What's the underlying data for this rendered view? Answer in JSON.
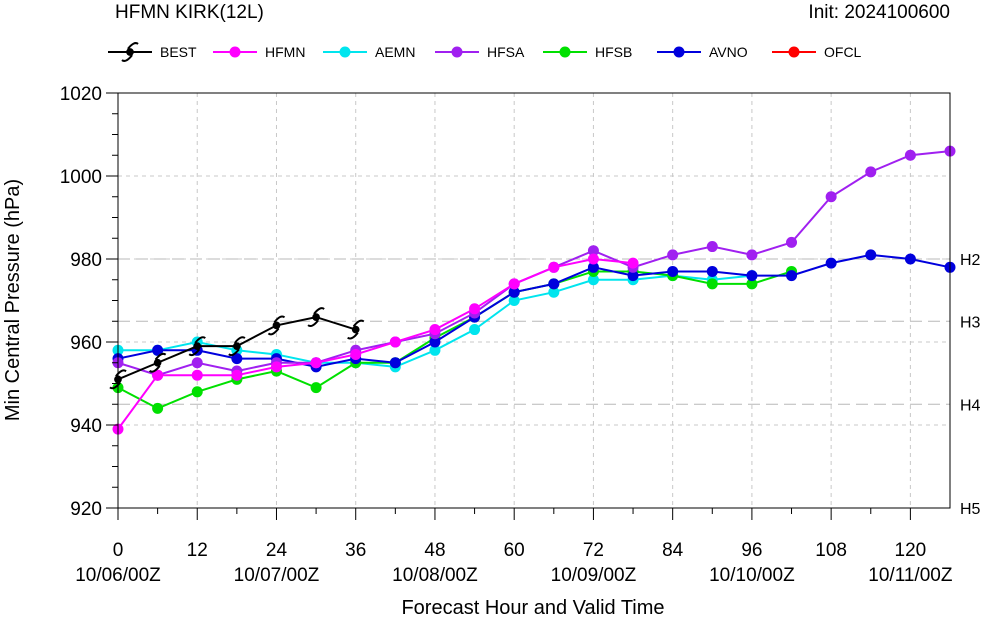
{
  "header": {
    "title": "HFMN KIRK(12L)",
    "init": "Init: 2024100600"
  },
  "chart_data": {
    "type": "line",
    "xlabel": "Forecast Hour and Valid Time",
    "ylabel": "Min Central Pressure (hPa)",
    "xlim": [
      0,
      126
    ],
    "ylim": [
      920,
      1020
    ],
    "xticks": [
      {
        "value": 0,
        "label": "0",
        "date": "10/06/00Z"
      },
      {
        "value": 12,
        "label": "12",
        "date": ""
      },
      {
        "value": 24,
        "label": "24",
        "date": "10/07/00Z"
      },
      {
        "value": 36,
        "label": "36",
        "date": ""
      },
      {
        "value": 48,
        "label": "48",
        "date": "10/08/00Z"
      },
      {
        "value": 60,
        "label": "60",
        "date": ""
      },
      {
        "value": 72,
        "label": "72",
        "date": "10/09/00Z"
      },
      {
        "value": 84,
        "label": "84",
        "date": ""
      },
      {
        "value": 96,
        "label": "96",
        "date": "10/10/00Z"
      },
      {
        "value": 108,
        "label": "108",
        "date": ""
      },
      {
        "value": 120,
        "label": "120",
        "date": "10/11/00Z"
      }
    ],
    "yticks": [
      920,
      940,
      960,
      980,
      1000,
      1020
    ],
    "categories": [
      {
        "value": 980,
        "label": "H2"
      },
      {
        "value": 965,
        "label": "H3"
      },
      {
        "value": 945,
        "label": "H4"
      },
      {
        "value": 920,
        "label": "H5"
      }
    ],
    "grid": true,
    "legend": "top",
    "series": [
      {
        "name": "BEST",
        "color": "#000000",
        "marker": "hurricane-icon",
        "x": [
          0,
          6,
          12,
          18,
          24,
          30,
          36
        ],
        "y": [
          951,
          955,
          959,
          959,
          964,
          966,
          963
        ]
      },
      {
        "name": "HFMN",
        "color": "#ff00ff",
        "marker": "circle",
        "x": [
          0,
          6,
          12,
          18,
          24,
          30,
          36,
          42,
          48,
          54,
          60,
          66,
          72,
          78
        ],
        "y": [
          939,
          952,
          952,
          952,
          954,
          955,
          957,
          960,
          963,
          968,
          974,
          978,
          980,
          979
        ]
      },
      {
        "name": "AEMN",
        "color": "#00e5ee",
        "marker": "circle",
        "x": [
          0,
          6,
          12,
          18,
          24,
          30,
          36,
          42,
          48,
          54,
          60,
          66,
          72,
          78,
          84,
          90,
          96
        ],
        "y": [
          958,
          958,
          960,
          958,
          957,
          955,
          955,
          954,
          958,
          963,
          970,
          972,
          975,
          975,
          976,
          975,
          976
        ]
      },
      {
        "name": "HFSA",
        "color": "#a020f0",
        "marker": "circle",
        "x": [
          0,
          6,
          12,
          18,
          24,
          30,
          36,
          42,
          48,
          54,
          60,
          66,
          72,
          78,
          84,
          90,
          96,
          102,
          108,
          114,
          120,
          126
        ],
        "y": [
          955,
          952,
          955,
          953,
          955,
          955,
          958,
          960,
          962,
          967,
          974,
          978,
          982,
          978,
          981,
          983,
          981,
          984,
          995,
          1001,
          1005,
          1006
        ]
      },
      {
        "name": "HFSB",
        "color": "#00e000",
        "marker": "circle",
        "x": [
          0,
          6,
          12,
          18,
          24,
          30,
          36,
          42,
          48,
          54,
          60,
          66,
          72,
          78,
          84,
          90,
          96,
          102
        ],
        "y": [
          949,
          944,
          948,
          951,
          953,
          949,
          955,
          955,
          961,
          966,
          972,
          974,
          977,
          977,
          976,
          974,
          974,
          977
        ]
      },
      {
        "name": "AVNO",
        "color": "#0000dd",
        "marker": "circle",
        "x": [
          0,
          6,
          12,
          18,
          24,
          30,
          36,
          42,
          48,
          54,
          60,
          66,
          72,
          78,
          84,
          90,
          96,
          102,
          108,
          114,
          120,
          126
        ],
        "y": [
          956,
          958,
          958,
          956,
          956,
          954,
          956,
          955,
          960,
          966,
          972,
          974,
          978,
          976,
          977,
          977,
          976,
          976,
          979,
          981,
          980,
          978
        ]
      },
      {
        "name": "OFCL",
        "color": "#ff0000",
        "marker": "circle",
        "x": [],
        "y": []
      }
    ]
  }
}
